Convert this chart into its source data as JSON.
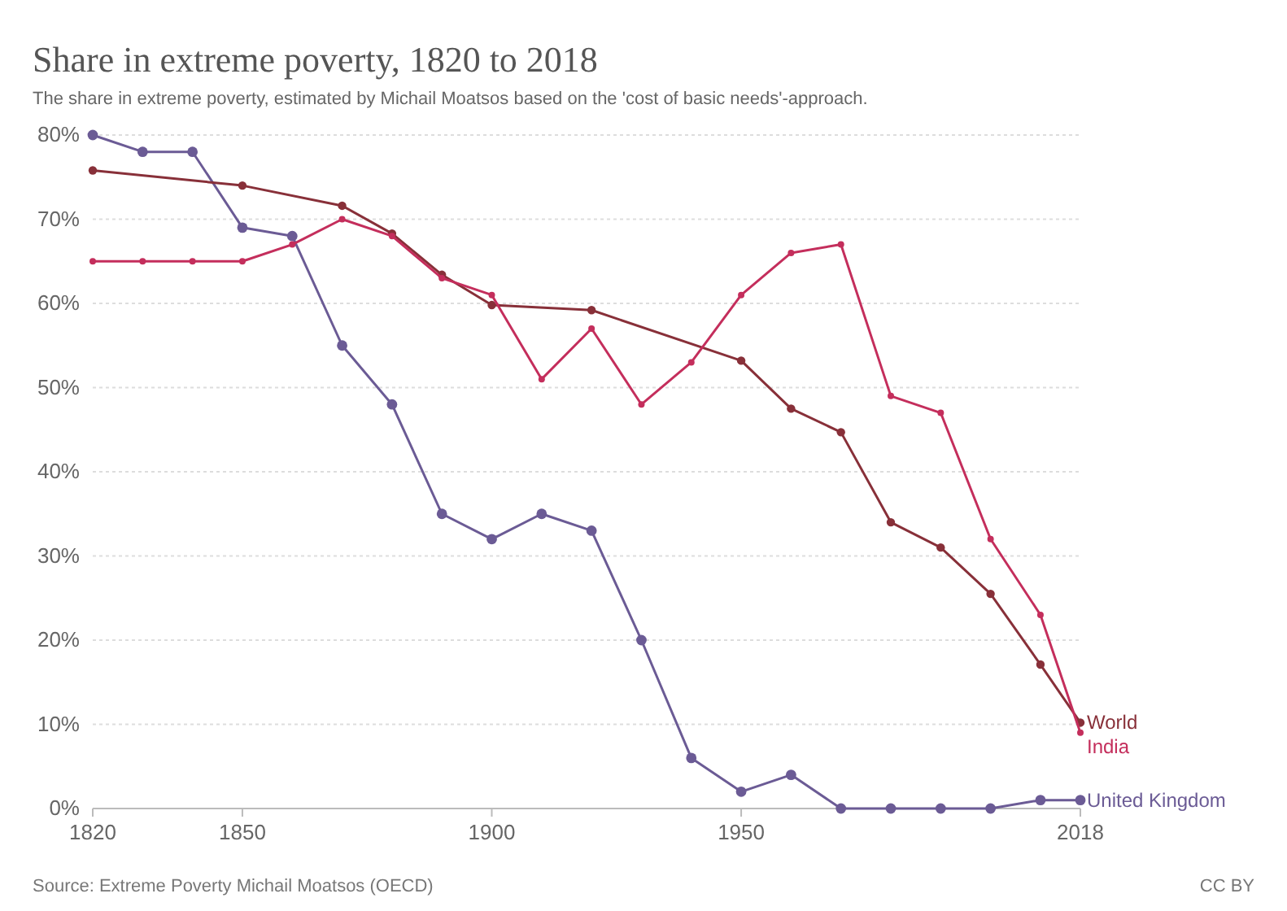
{
  "chart_data": {
    "type": "line",
    "title": "Share in extreme poverty, 1820 to 2018",
    "subtitle": "The share in extreme poverty, estimated by Michail Moatsos based on the 'cost of basic needs'-approach.",
    "series": [
      {
        "name": "United Kingdom",
        "color": "#6b5b95",
        "x": [
          1820,
          1830,
          1840,
          1850,
          1860,
          1870,
          1880,
          1890,
          1900,
          1910,
          1920,
          1930,
          1940,
          1950,
          1960,
          1970,
          1980,
          1990,
          2000,
          2010,
          2018
        ],
        "values": [
          80,
          78,
          78,
          69,
          68,
          55,
          48,
          35,
          32,
          35,
          33,
          20,
          6,
          2,
          4,
          0,
          0,
          0,
          0,
          1,
          1
        ]
      },
      {
        "name": "World",
        "color": "#883039",
        "x": [
          1820,
          1850,
          1870,
          1880,
          1890,
          1900,
          1920,
          1950,
          1960,
          1970,
          1980,
          1990,
          2000,
          2010,
          2018
        ],
        "values": [
          75.8,
          74,
          71.6,
          68.3,
          63.4,
          59.8,
          59.2,
          53.2,
          47.5,
          44.7,
          34,
          31,
          25.5,
          17.1,
          10.2
        ]
      },
      {
        "name": "India",
        "color": "#c42e5c",
        "x": [
          1820,
          1830,
          1840,
          1850,
          1860,
          1870,
          1880,
          1890,
          1900,
          1910,
          1920,
          1930,
          1940,
          1950,
          1960,
          1970,
          1980,
          1990,
          2000,
          2010,
          2018
        ],
        "values": [
          65,
          65,
          65,
          65,
          67,
          70,
          68,
          63,
          61,
          51,
          57,
          48,
          53,
          61,
          66,
          67,
          49,
          47,
          32,
          23,
          9
        ]
      }
    ],
    "xlim": [
      1820,
      2018
    ],
    "xticks": [
      1820,
      1850,
      1900,
      1950,
      2018
    ],
    "ylim": [
      0,
      80
    ],
    "yticks": [
      {
        "value": 0,
        "label": "0%"
      },
      {
        "value": 10,
        "label": "10%"
      },
      {
        "value": 20,
        "label": "20%"
      },
      {
        "value": 30,
        "label": "30%"
      },
      {
        "value": 40,
        "label": "40%"
      },
      {
        "value": 50,
        "label": "50%"
      },
      {
        "value": 60,
        "label": "60%"
      },
      {
        "value": 70,
        "label": "70%"
      },
      {
        "value": 80,
        "label": "80%"
      }
    ],
    "grid": "y",
    "legend": false,
    "marker": "circle",
    "line_style": "solid",
    "annotations": [
      "Source: Extreme Poverty Michail Moatsos (OECD)",
      "CC BY"
    ]
  }
}
